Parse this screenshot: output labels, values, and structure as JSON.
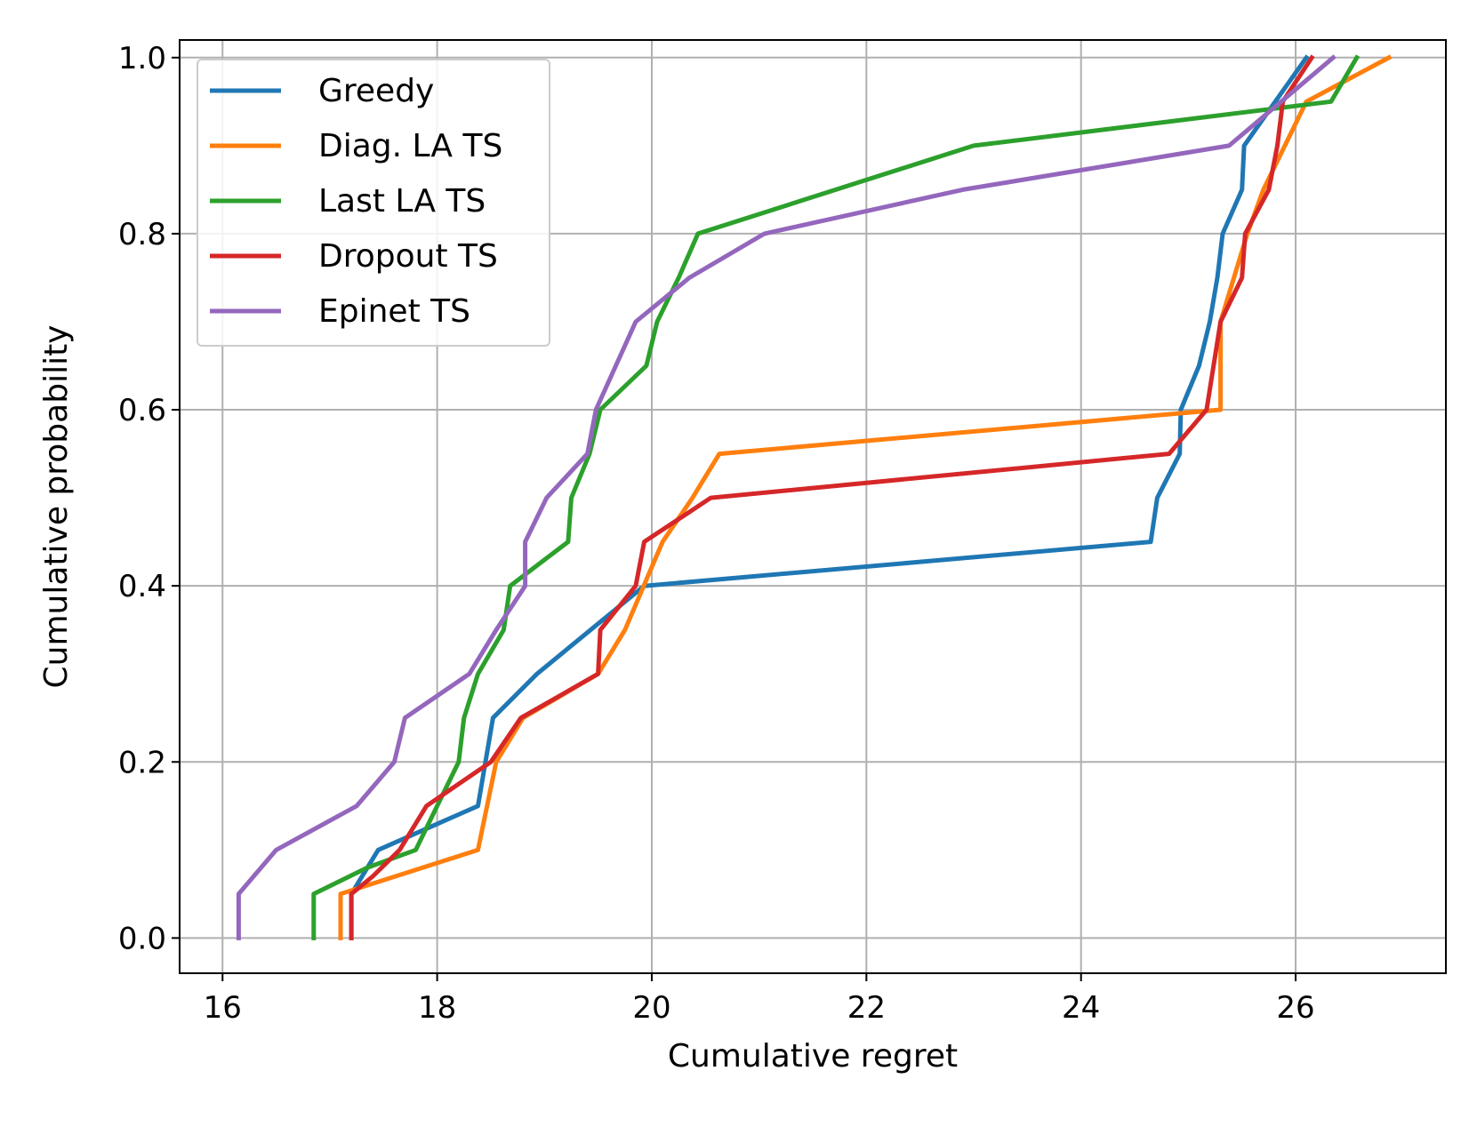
{
  "chart_data": {
    "type": "line",
    "title": "",
    "xlabel": "Cumulative regret",
    "ylabel": "Cumulative probability",
    "xlim": [
      15.6,
      27.4
    ],
    "ylim": [
      -0.04,
      1.02
    ],
    "xticks": [
      16,
      18,
      20,
      22,
      24,
      26
    ],
    "yticks": [
      0.0,
      0.2,
      0.4,
      0.6,
      0.8,
      1.0
    ],
    "xtick_labels": [
      "16",
      "18",
      "20",
      "22",
      "24",
      "26"
    ],
    "ytick_labels": [
      "0.0",
      "0.2",
      "0.4",
      "0.6",
      "0.8",
      "1.0"
    ],
    "grid": true,
    "legend_position": "upper-left",
    "series": [
      {
        "name": "Greedy",
        "color": "#1f77b4",
        "points": [
          [
            17.2,
            0.0
          ],
          [
            17.2,
            0.05
          ],
          [
            17.45,
            0.1
          ],
          [
            18.38,
            0.15
          ],
          [
            18.52,
            0.25
          ],
          [
            18.93,
            0.3
          ],
          [
            19.93,
            0.4
          ],
          [
            24.65,
            0.45
          ],
          [
            24.71,
            0.5
          ],
          [
            24.92,
            0.55
          ],
          [
            24.93,
            0.6
          ],
          [
            25.1,
            0.65
          ],
          [
            25.2,
            0.7
          ],
          [
            25.27,
            0.75
          ],
          [
            25.32,
            0.8
          ],
          [
            25.5,
            0.85
          ],
          [
            25.52,
            0.9
          ],
          [
            26.1,
            1.0
          ]
        ]
      },
      {
        "name": "Diag. LA TS",
        "color": "#ff7f0e",
        "points": [
          [
            17.1,
            0.0
          ],
          [
            17.1,
            0.05
          ],
          [
            18.38,
            0.1
          ],
          [
            18.55,
            0.2
          ],
          [
            18.8,
            0.25
          ],
          [
            19.5,
            0.3
          ],
          [
            19.75,
            0.35
          ],
          [
            20.1,
            0.45
          ],
          [
            20.38,
            0.5
          ],
          [
            20.63,
            0.55
          ],
          [
            25.3,
            0.6
          ],
          [
            25.3,
            0.7
          ],
          [
            25.55,
            0.8
          ],
          [
            25.7,
            0.85
          ],
          [
            26.1,
            0.95
          ],
          [
            26.87,
            1.0
          ]
        ]
      },
      {
        "name": "Last LA TS",
        "color": "#2ca02c",
        "points": [
          [
            16.85,
            0.0
          ],
          [
            16.85,
            0.05
          ],
          [
            17.35,
            0.08
          ],
          [
            17.8,
            0.1
          ],
          [
            18.0,
            0.15
          ],
          [
            18.2,
            0.2
          ],
          [
            18.25,
            0.25
          ],
          [
            18.38,
            0.3
          ],
          [
            18.62,
            0.35
          ],
          [
            18.68,
            0.4
          ],
          [
            19.22,
            0.45
          ],
          [
            19.25,
            0.5
          ],
          [
            19.42,
            0.55
          ],
          [
            19.52,
            0.6
          ],
          [
            19.95,
            0.65
          ],
          [
            20.05,
            0.7
          ],
          [
            20.25,
            0.75
          ],
          [
            20.43,
            0.8
          ],
          [
            23.0,
            0.9
          ],
          [
            26.33,
            0.95
          ],
          [
            26.57,
            1.0
          ]
        ]
      },
      {
        "name": "Dropout TS",
        "color": "#d62728",
        "points": [
          [
            17.2,
            0.0
          ],
          [
            17.2,
            0.05
          ],
          [
            17.4,
            0.07
          ],
          [
            17.65,
            0.1
          ],
          [
            17.9,
            0.15
          ],
          [
            18.5,
            0.2
          ],
          [
            18.78,
            0.25
          ],
          [
            19.5,
            0.3
          ],
          [
            19.52,
            0.35
          ],
          [
            19.85,
            0.4
          ],
          [
            19.93,
            0.45
          ],
          [
            20.55,
            0.5
          ],
          [
            24.82,
            0.55
          ],
          [
            25.17,
            0.6
          ],
          [
            25.3,
            0.7
          ],
          [
            25.5,
            0.75
          ],
          [
            25.53,
            0.8
          ],
          [
            25.75,
            0.85
          ],
          [
            25.83,
            0.9
          ],
          [
            25.88,
            0.95
          ],
          [
            26.15,
            1.0
          ]
        ]
      },
      {
        "name": "Epinet TS",
        "color": "#9467bd",
        "points": [
          [
            16.15,
            0.0
          ],
          [
            16.15,
            0.05
          ],
          [
            16.5,
            0.1
          ],
          [
            17.25,
            0.15
          ],
          [
            17.6,
            0.2
          ],
          [
            17.7,
            0.25
          ],
          [
            18.3,
            0.3
          ],
          [
            18.55,
            0.35
          ],
          [
            18.82,
            0.4
          ],
          [
            18.82,
            0.45
          ],
          [
            19.02,
            0.5
          ],
          [
            19.4,
            0.55
          ],
          [
            19.48,
            0.6
          ],
          [
            19.85,
            0.7
          ],
          [
            20.35,
            0.75
          ],
          [
            21.05,
            0.8
          ],
          [
            22.9,
            0.85
          ],
          [
            25.38,
            0.9
          ],
          [
            26.35,
            1.0
          ]
        ]
      }
    ]
  }
}
